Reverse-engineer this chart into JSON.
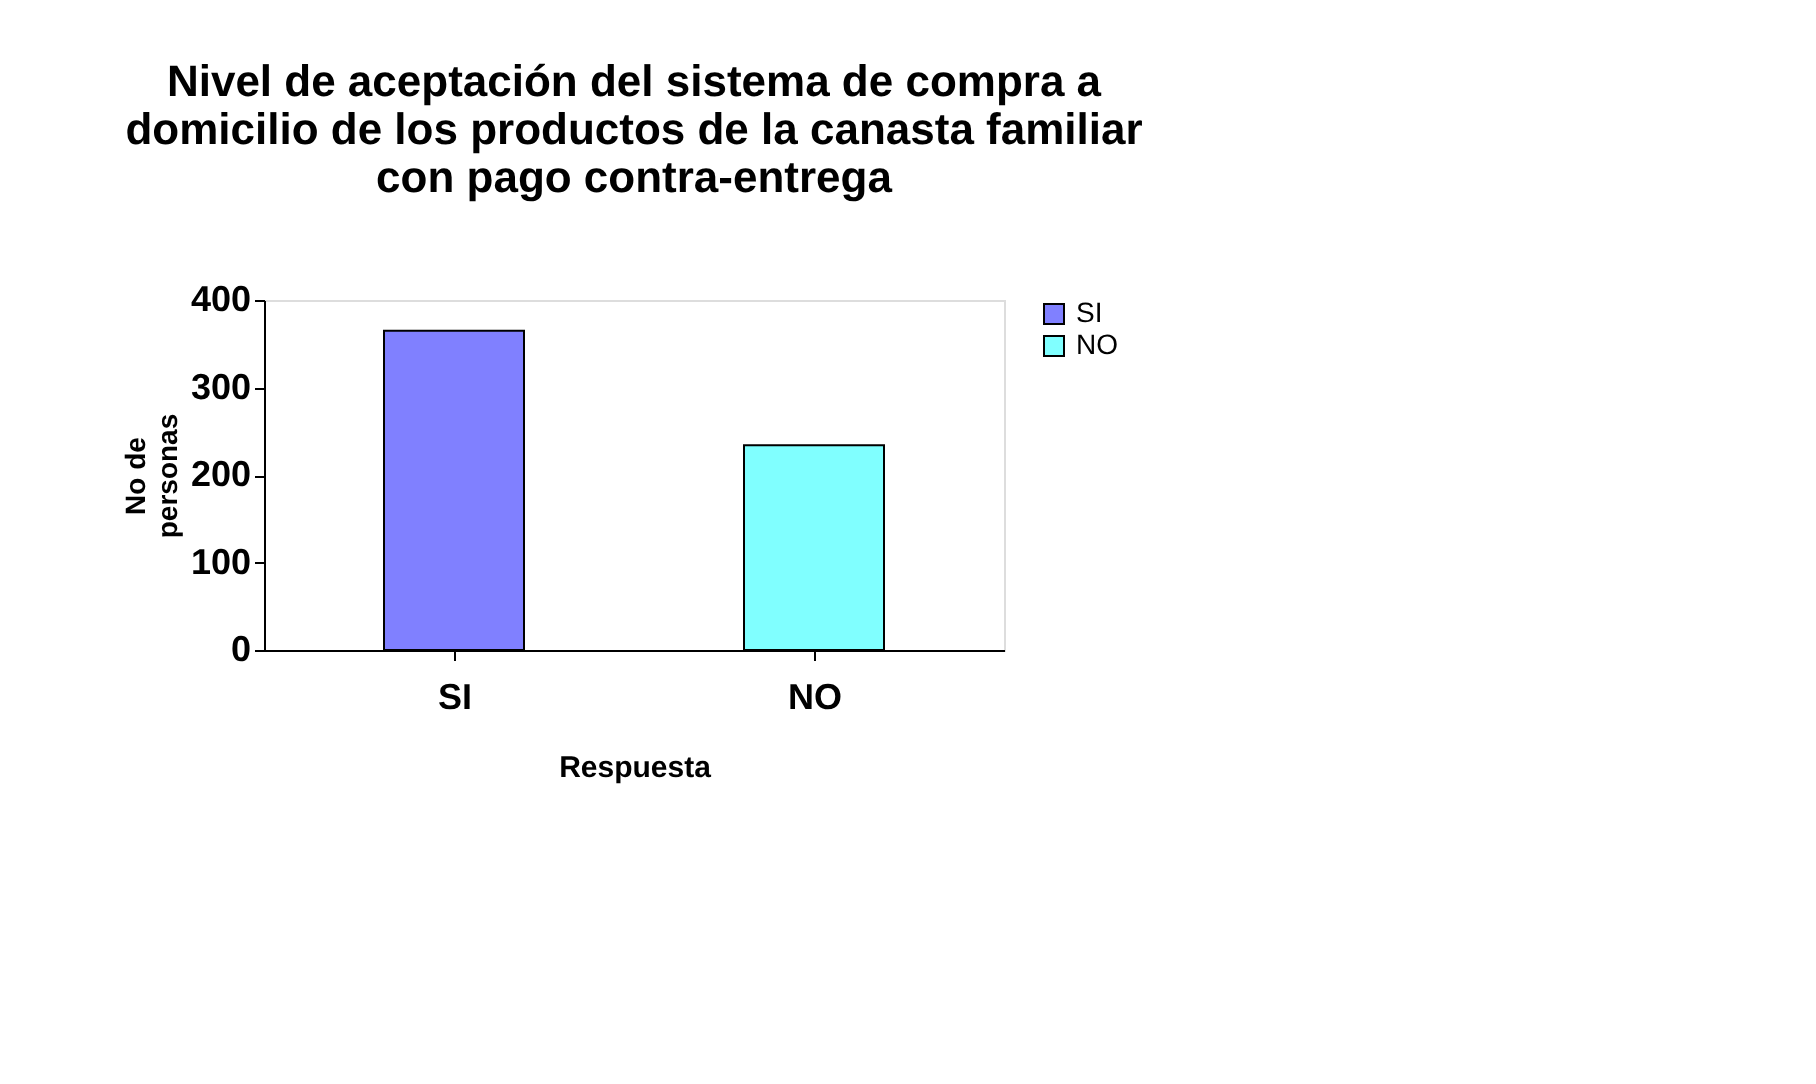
{
  "chart_data": {
    "type": "bar",
    "title": "Nivel de aceptación del sistema de compra a domicilio de los productos de la canasta familiar con pago contra-entrega",
    "xlabel": "Respuesta",
    "ylabel": "No de personas",
    "categories": [
      "SI",
      "NO"
    ],
    "series": [
      {
        "name": "SI",
        "color": "#8080ff",
        "values": [
          365,
          null
        ]
      },
      {
        "name": "NO",
        "color": "#80ffff",
        "values": [
          null,
          234
        ]
      }
    ],
    "ylim": [
      0,
      400
    ],
    "yticks": [
      0,
      100,
      200,
      300,
      400
    ],
    "grid": false,
    "legend": "right"
  }
}
